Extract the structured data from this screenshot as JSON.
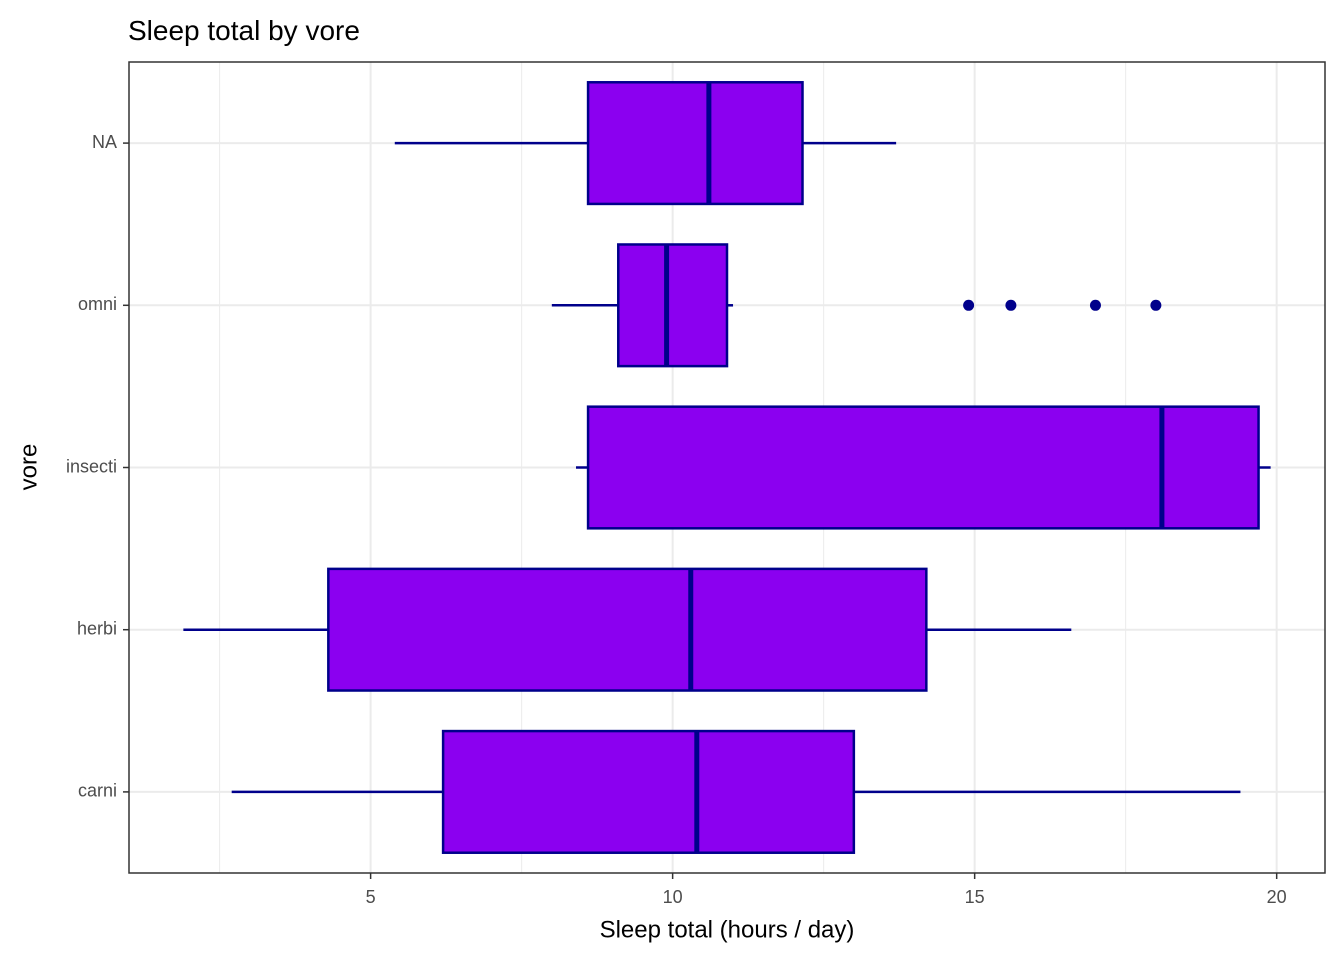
{
  "chart_data": {
    "type": "boxplot",
    "orientation": "horizontal",
    "title": "Sleep total by vore",
    "x_label": "Sleep total (hours / day)",
    "y_label": "vore",
    "categories": [
      "carni",
      "herbi",
      "insecti",
      "omni",
      "NA"
    ],
    "boxes": [
      {
        "low": 2.7,
        "q1": 6.2,
        "median": 10.4,
        "q3": 13.0,
        "high": 19.4,
        "outliers": []
      },
      {
        "low": 1.9,
        "q1": 4.3,
        "median": 10.3,
        "q3": 14.2,
        "high": 16.6,
        "outliers": []
      },
      {
        "low": 8.4,
        "q1": 8.6,
        "median": 18.1,
        "q3": 19.7,
        "high": 19.9,
        "outliers": []
      },
      {
        "low": 8.0,
        "q1": 9.1,
        "median": 9.9,
        "q3": 10.9,
        "high": 11.0,
        "outliers": [
          14.9,
          15.6,
          17.0,
          18.0
        ]
      },
      {
        "low": 5.4,
        "q1": 8.6,
        "median": 10.6,
        "q3": 12.15,
        "high": 13.7,
        "outliers": []
      }
    ],
    "fill": "#8B00F0",
    "line_color": "#00008B",
    "xlim": [
      1.0,
      20.8
    ],
    "xticks": [
      5,
      10,
      15,
      20
    ],
    "xminorticks": [
      2.5,
      7.5,
      12.5,
      17.5
    ],
    "grid": true
  }
}
